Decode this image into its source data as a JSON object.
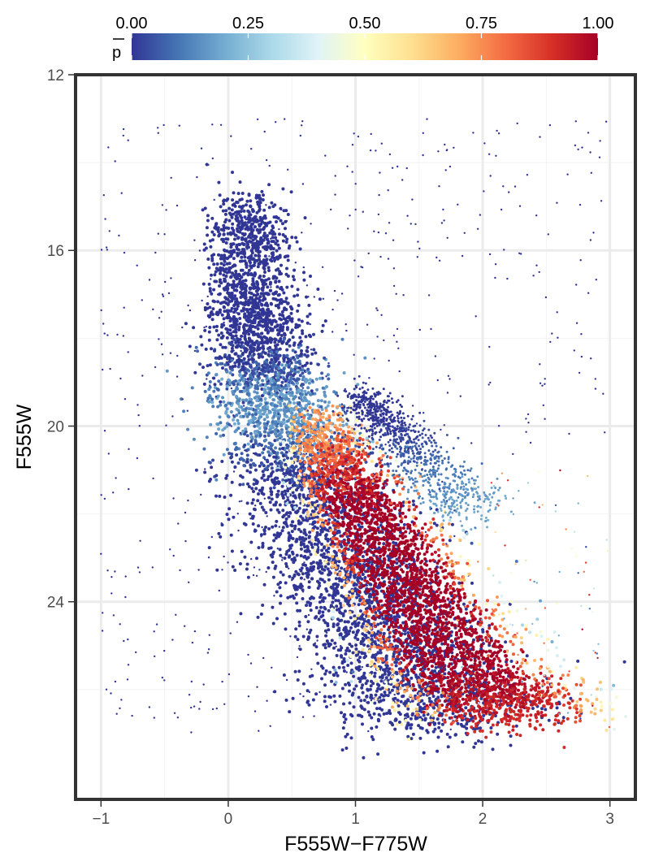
{
  "chart_data": {
    "type": "scatter",
    "title": "",
    "xlabel": "F555W−F775W",
    "ylabel": "F555W",
    "xlim": [
      -1.2,
      3.2
    ],
    "ylim": [
      12,
      28.5
    ],
    "y_reversed": true,
    "x_ticks": [
      -1,
      0,
      1,
      2,
      3
    ],
    "x_tick_labels": [
      "−1",
      "0",
      "1",
      "2",
      "3"
    ],
    "y_ticks": [
      12,
      16,
      20,
      24
    ],
    "y_tick_labels": [
      "12",
      "16",
      "20",
      "24"
    ],
    "grid": true,
    "legend_placement": "top",
    "colorbar": {
      "label": "p̄",
      "label_base": "p",
      "range": [
        0,
        1
      ],
      "ticks": [
        0,
        0.25,
        0.5,
        0.75,
        1.0
      ],
      "tick_labels": [
        "0.00",
        "0.25",
        "0.50",
        "0.75",
        "1.00"
      ],
      "colors": [
        "#313695",
        "#4575b4",
        "#74add1",
        "#abd9e9",
        "#e0f3f8",
        "#ffffbf",
        "#fee090",
        "#fdae61",
        "#f46d43",
        "#d73027",
        "#a50026"
      ]
    },
    "series": [
      {
        "description_points": "approximate ridge of the upper main sequence / low-p population (color, magnitude, mean p)",
        "points": [
          {
            "x": 0.15,
            "y": 15.0,
            "p": 0.0
          },
          {
            "x": 0.2,
            "y": 17.0,
            "p": 0.0
          },
          {
            "x": 0.25,
            "y": 18.5,
            "p": 0.0
          },
          {
            "x": 0.35,
            "y": 19.5,
            "p": 0.2
          },
          {
            "x": 0.55,
            "y": 21.0,
            "p": 0.0
          },
          {
            "x": 0.8,
            "y": 22.5,
            "p": 0.0
          },
          {
            "x": 1.1,
            "y": 24.0,
            "p": 0.0
          },
          {
            "x": 1.4,
            "y": 25.5,
            "p": 0.0
          },
          {
            "x": 1.7,
            "y": 26.8,
            "p": 0.0
          }
        ]
      },
      {
        "points": [
          {
            "x": 0.7,
            "y": 20.0,
            "p": 0.7
          },
          {
            "x": 1.0,
            "y": 21.5,
            "p": 1.0
          },
          {
            "x": 1.3,
            "y": 23.0,
            "p": 1.0
          },
          {
            "x": 1.6,
            "y": 24.5,
            "p": 1.0
          },
          {
            "x": 1.9,
            "y": 25.8,
            "p": 1.0
          },
          {
            "x": 2.3,
            "y": 26.5,
            "p": 0.9
          }
        ]
      },
      {
        "points": [
          {
            "x": 1.0,
            "y": 19.3,
            "p": 0.0
          },
          {
            "x": 1.3,
            "y": 20.0,
            "p": 0.0
          },
          {
            "x": 1.6,
            "y": 21.0,
            "p": 0.1
          },
          {
            "x": 1.9,
            "y": 22.0,
            "p": 0.2
          }
        ]
      }
    ]
  }
}
